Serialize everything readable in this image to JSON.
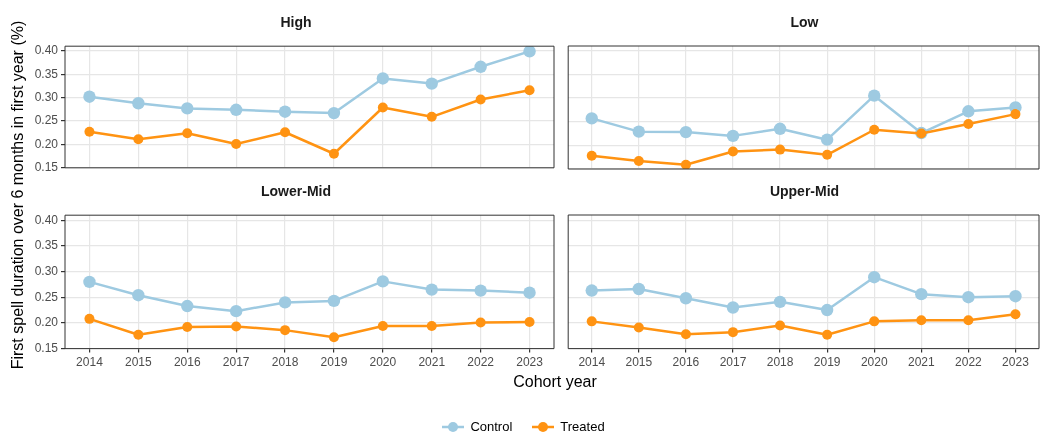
{
  "chart_data": [
    {
      "type": "line",
      "title": "High",
      "ylabel": "First spell duration over 6 months in first year (%)",
      "categories": [
        "2014",
        "2015",
        "2016",
        "2017",
        "2018",
        "2019",
        "2020",
        "2021",
        "2022",
        "2023"
      ],
      "ylim": [
        0.15,
        0.41
      ],
      "yticks": [
        {
          "value": 0.15,
          "label": "0.15"
        },
        {
          "value": 0.2,
          "label": "0.20"
        },
        {
          "value": 0.25,
          "label": "0.25"
        },
        {
          "value": 0.3,
          "label": "0.30"
        },
        {
          "value": 0.35,
          "label": "0.35"
        },
        {
          "value": 0.4,
          "label": "0.40"
        }
      ],
      "grid": true,
      "marker": "circle",
      "legend": "bottom",
      "tick_labels": "y",
      "series": [
        {
          "name": "Control",
          "color": "#9ecae1",
          "values": [
            0.302,
            0.288,
            0.277,
            0.274,
            0.27,
            0.267,
            0.341,
            0.33,
            0.366,
            0.399
          ]
        },
        {
          "name": "Treated",
          "color": "#ff9312",
          "values": [
            0.227,
            0.211,
            0.224,
            0.201,
            0.226,
            0.18,
            0.279,
            0.259,
            0.296,
            0.316
          ]
        }
      ]
    },
    {
      "type": "line",
      "title": "Low",
      "categories": [
        "2014",
        "2015",
        "2016",
        "2017",
        "2018",
        "2019",
        "2020",
        "2021",
        "2022",
        "2023"
      ],
      "ylim": [
        0.15,
        0.41
      ],
      "yticks": [
        0.15,
        0.2,
        0.25,
        0.3,
        0.35,
        0.4
      ],
      "grid": true,
      "marker": "circle",
      "tick_labels": false,
      "series": [
        {
          "name": "Control",
          "color": "#9ecae1",
          "values": [
            0.257,
            0.229,
            0.228,
            0.22,
            0.235,
            0.212,
            0.305,
            0.226,
            0.272,
            0.28
          ]
        },
        {
          "name": "Treated",
          "color": "#ff9312",
          "values": [
            0.178,
            0.167,
            0.159,
            0.187,
            0.191,
            0.18,
            0.233,
            0.225,
            0.245,
            0.266
          ]
        }
      ]
    },
    {
      "type": "line",
      "title": "Lower-Mid",
      "xlabel": "Cohort year",
      "categories": [
        "2014",
        "2015",
        "2016",
        "2017",
        "2018",
        "2019",
        "2020",
        "2021",
        "2022",
        "2023"
      ],
      "ylim": [
        0.15,
        0.41
      ],
      "yticks": [
        {
          "value": 0.15,
          "label": "0.15"
        },
        {
          "value": 0.2,
          "label": "0.20"
        },
        {
          "value": 0.25,
          "label": "0.25"
        },
        {
          "value": 0.3,
          "label": "0.30"
        },
        {
          "value": 0.35,
          "label": "0.35"
        },
        {
          "value": 0.4,
          "label": "0.40"
        }
      ],
      "grid": true,
      "marker": "circle",
      "series": [
        {
          "name": "Control",
          "color": "#9ecae1",
          "values": [
            0.28,
            0.254,
            0.233,
            0.223,
            0.24,
            0.243,
            0.281,
            0.265,
            0.263,
            0.259
          ]
        },
        {
          "name": "Treated",
          "color": "#ff9312",
          "values": [
            0.208,
            0.177,
            0.192,
            0.193,
            0.186,
            0.172,
            0.194,
            0.194,
            0.201,
            0.202
          ]
        }
      ]
    },
    {
      "type": "line",
      "title": "Upper-Mid",
      "categories": [
        "2014",
        "2015",
        "2016",
        "2017",
        "2018",
        "2019",
        "2020",
        "2021",
        "2022",
        "2023"
      ],
      "ylim": [
        0.15,
        0.41
      ],
      "yticks": [
        0.15,
        0.2,
        0.25,
        0.3,
        0.35,
        0.4
      ],
      "grid": true,
      "marker": "circle",
      "tick_labels": "x",
      "series": [
        {
          "name": "Control",
          "color": "#9ecae1",
          "values": [
            0.263,
            0.266,
            0.248,
            0.23,
            0.241,
            0.225,
            0.289,
            0.256,
            0.25,
            0.252
          ]
        },
        {
          "name": "Treated",
          "color": "#ff9312",
          "values": [
            0.203,
            0.191,
            0.178,
            0.182,
            0.195,
            0.177,
            0.203,
            0.205,
            0.205,
            0.217
          ]
        }
      ]
    }
  ]
}
